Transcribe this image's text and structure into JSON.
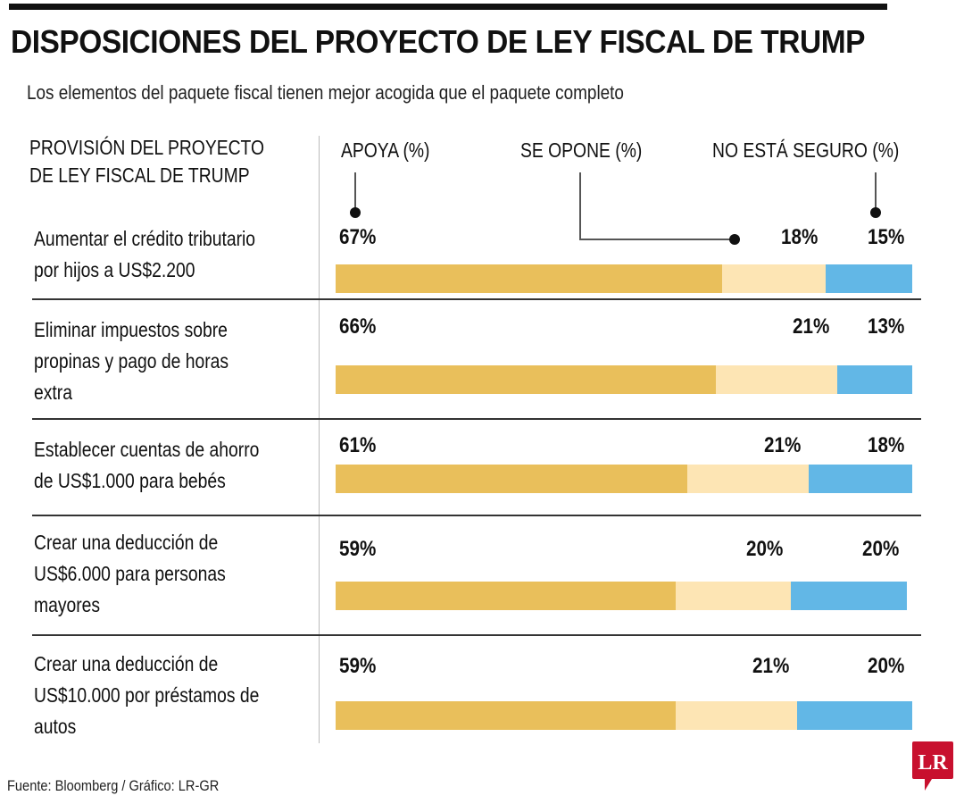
{
  "header": {
    "title": "DISPOSICIONES DEL PROYECTO DE LEY FISCAL DE TRUMP",
    "subtitle": "Los elementos del paquete fiscal tienen mejor acogida que el paquete completo"
  },
  "column_header": {
    "line1": "PROVISIÓN DEL PROYECTO",
    "line2": "DE LEY FISCAL DE TRUMP"
  },
  "footer": {
    "source": "Fuente: Bloomberg / Gráfico: LR-GR"
  },
  "logo": {
    "text": "LR",
    "color": "#c8102e"
  },
  "colors": {
    "apoya": "#e9bf5b",
    "se_opone": "#fde5b4",
    "no_seguro": "#62b7e6"
  },
  "chart_data": {
    "type": "bar",
    "orientation": "horizontal",
    "stacked": true,
    "title": "DISPOSICIONES DEL PROYECTO DE LEY FISCAL DE TRUMP",
    "subtitle": "Los elementos del paquete fiscal tienen mejor acogida que el paquete completo",
    "category_header": "PROVISIÓN DEL PROYECTO DE LEY FISCAL DE TRUMP",
    "legend": [
      "APOYA (%)",
      "SE OPONE (%)",
      "NO ESTÁ SEGURO (%)"
    ],
    "legend_placement": "top",
    "categories": [
      [
        "Aumentar el crédito tributario",
        "por hijos a US$2.200"
      ],
      [
        "Eliminar impuestos sobre",
        "propinas y pago de horas",
        "extra"
      ],
      [
        "Establecer cuentas de ahorro",
        "de US$1.000 para bebés"
      ],
      [
        "Crear una deducción de",
        "US$6.000 para personas",
        "mayores"
      ],
      [
        "Crear una deducción de",
        "US$10.000 por préstamos de",
        "autos"
      ]
    ],
    "series": [
      {
        "name": "APOYA (%)",
        "values": [
          67,
          66,
          61,
          59,
          59
        ]
      },
      {
        "name": "SE OPONE (%)",
        "values": [
          18,
          21,
          21,
          20,
          21
        ]
      },
      {
        "name": "NO ESTÁ SEGURO (%)",
        "values": [
          15,
          13,
          18,
          20,
          20
        ]
      }
    ],
    "xlim": [
      0,
      100
    ],
    "source": "Fuente: Bloomberg / Gráfico: LR-GR"
  }
}
